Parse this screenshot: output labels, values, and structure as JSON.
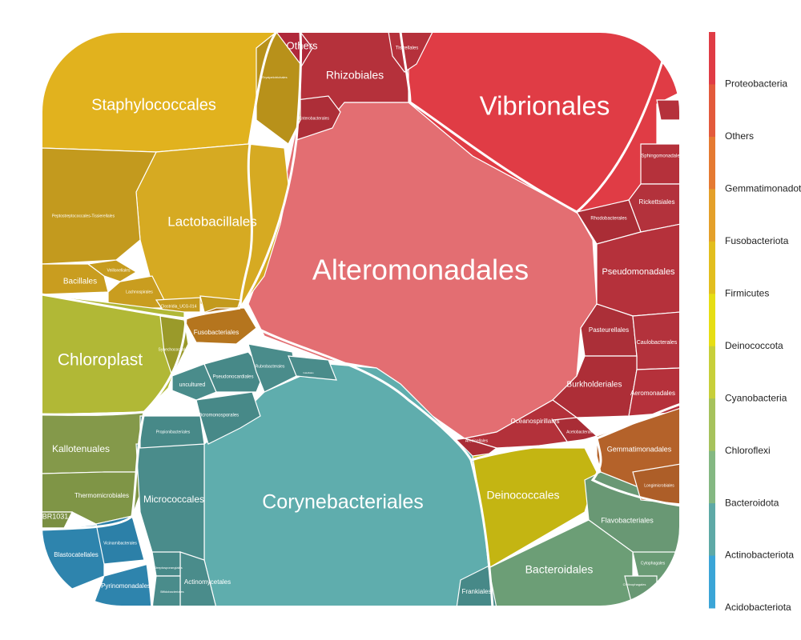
{
  "chart_data": {
    "type": "voronoi-treemap",
    "title": "",
    "legend": {
      "placement": "right",
      "phyla": [
        {
          "name": "Proteobacteria",
          "color": "#e03c45"
        },
        {
          "name": "Others",
          "color": "#e35a3c"
        },
        {
          "name": "Gemmatimonadota",
          "color": "#e57a32"
        },
        {
          "name": "Fusobacteriota",
          "color": "#e4a02a"
        },
        {
          "name": "Firmicutes",
          "color": "#e2be1e"
        },
        {
          "name": "Deinococcota",
          "color": "#e6de14"
        },
        {
          "name": "Cyanobacteria",
          "color": "#c7cf3a"
        },
        {
          "name": "Chloroflexi",
          "color": "#a6c25c"
        },
        {
          "name": "Bacteroidota",
          "color": "#84b882"
        },
        {
          "name": "Actinobacteriota",
          "color": "#5ea9a6"
        },
        {
          "name": "Acidobacteriota",
          "color": "#3ba5d7"
        }
      ]
    },
    "cells": [
      {
        "name": "Alteromonadales",
        "phylum": "Proteobacteria",
        "color": "#e36e72"
      },
      {
        "name": "Vibrionales",
        "phylum": "Proteobacteria",
        "color": "#e03c45"
      },
      {
        "name": "Rhizobiales",
        "phylum": "Proteobacteria",
        "color": "#b5313b"
      },
      {
        "name": "Tistrellales",
        "phylum": "Proteobacteria",
        "color": "#b5313b"
      },
      {
        "name": "Enterobacterales",
        "phylum": "Proteobacteria",
        "color": "#ad2e38"
      },
      {
        "name": "Sphingomonadales",
        "phylum": "Proteobacteria",
        "color": "#b5313b"
      },
      {
        "name": "Rickettsiales",
        "phylum": "Proteobacteria",
        "color": "#b3323c"
      },
      {
        "name": "Rhodobacterales",
        "phylum": "Proteobacteria",
        "color": "#aa2d36"
      },
      {
        "name": "Pseudomonadales",
        "phylum": "Proteobacteria",
        "color": "#b5313b"
      },
      {
        "name": "Pasteurellales",
        "phylum": "Proteobacteria",
        "color": "#ab2f38"
      },
      {
        "name": "Caulobacterales",
        "phylum": "Proteobacteria",
        "color": "#b3323c"
      },
      {
        "name": "Burkholderiales",
        "phylum": "Proteobacteria",
        "color": "#ad2e37"
      },
      {
        "name": "Aeromonadales",
        "phylum": "Proteobacteria",
        "color": "#b5313b"
      },
      {
        "name": "Oceanospirillales",
        "phylum": "Proteobacteria",
        "color": "#b3313a"
      },
      {
        "name": "Acetobacterales",
        "phylum": "Proteobacteria",
        "color": "#a92d36"
      },
      {
        "name": "Alcanivoracales",
        "phylum": "Proteobacteria",
        "color": "#b5313b"
      },
      {
        "name": "Arenicellales",
        "phylum": "Proteobacteria",
        "color": "#a92d36"
      },
      {
        "name": "Others",
        "phylum": "Others",
        "color": "#b0283a"
      },
      {
        "name": "Staphylococcales",
        "phylum": "Firmicutes",
        "color": "#e1b21e"
      },
      {
        "name": "Lactobacillales",
        "phylum": "Firmicutes",
        "color": "#d6aa22"
      },
      {
        "name": "Peptostreptococcales-Tissierellales",
        "phylum": "Firmicutes",
        "color": "#c39a1e"
      },
      {
        "name": "Erysipelotrichales",
        "phylum": "Firmicutes",
        "color": "#b8911a"
      },
      {
        "name": "Bacillales",
        "phylum": "Firmicutes",
        "color": "#c99d1f"
      },
      {
        "name": "Veillonellales",
        "phylum": "Firmicutes",
        "color": "#c79c1e"
      },
      {
        "name": "Lachnospirales",
        "phylum": "Firmicutes",
        "color": "#c99d1f"
      },
      {
        "name": "Clostridia_UCG-014",
        "phylum": "Firmicutes",
        "color": "#c59a1e"
      },
      {
        "name": "Thermoanaerobacterales",
        "phylum": "Firmicutes",
        "color": "#c39a1e"
      },
      {
        "name": "Fusobacteriales",
        "phylum": "Fusobacteriota",
        "color": "#b5751e"
      },
      {
        "name": "Chloroplast",
        "phylum": "Cyanobacteria",
        "color": "#b1b836"
      },
      {
        "name": "Synechococcales",
        "phylum": "Cyanobacteria",
        "color": "#9a9a2a"
      },
      {
        "name": "Kallotenuales",
        "phylum": "Chloroflexi",
        "color": "#84994a"
      },
      {
        "name": "Thermomicrobiales",
        "phylum": "Chloroflexi",
        "color": "#7f9546"
      },
      {
        "name": "SBR1031",
        "phylum": "Chloroflexi",
        "color": "#7a8f42"
      },
      {
        "name": "Corynebacteriales",
        "phylum": "Actinobacteriota",
        "color": "#5fadad"
      },
      {
        "name": "Micrococcales",
        "phylum": "Actinobacteriota",
        "color": "#4a8c8b"
      },
      {
        "name": "Propionibacteriales",
        "phylum": "Actinobacteriota",
        "color": "#478988"
      },
      {
        "name": "Micromonosporales",
        "phylum": "Actinobacteriota",
        "color": "#478988"
      },
      {
        "name": "uncultured",
        "phylum": "Actinobacteriota",
        "color": "#4a8c8b"
      },
      {
        "name": "Pseudonocardiales",
        "phylum": "Actinobacteriota",
        "color": "#478988"
      },
      {
        "name": "Rubrobacterales",
        "phylum": "Actinobacteriota",
        "color": "#4a8c8b"
      },
      {
        "name": "Frankiales",
        "phylum": "Actinobacteriota",
        "color": "#478988"
      },
      {
        "name": "Actinomycetales",
        "phylum": "Actinobacteriota",
        "color": "#4a8c8b"
      },
      {
        "name": "Streptosporangiales",
        "phylum": "Actinobacteriota",
        "color": "#478988"
      },
      {
        "name": "Bifidobacteriales",
        "phylum": "Actinobacteriota",
        "color": "#4a8c8b"
      },
      {
        "name": "Gaiellales",
        "phylum": "Actinobacteriota",
        "color": "#4a8c8b"
      },
      {
        "name": "Deinococcales",
        "phylum": "Deinococcota",
        "color": "#c4b512"
      },
      {
        "name": "Flavobacteriales",
        "phylum": "Bacteroidota",
        "color": "#699874"
      },
      {
        "name": "Bacteroidales",
        "phylum": "Bacteroidota",
        "color": "#6c9e76"
      },
      {
        "name": "Cytophagales",
        "phylum": "Bacteroidota",
        "color": "#6a9b75"
      },
      {
        "name": "Chitinophagales",
        "phylum": "Bacteroidota",
        "color": "#699874"
      },
      {
        "name": "Gemmatimonadales",
        "phylum": "Gemmatimonadota",
        "color": "#b4622a"
      },
      {
        "name": "Longimicrobiales",
        "phylum": "Gemmatimonadota",
        "color": "#ad5e28"
      },
      {
        "name": "Blastocatellales",
        "phylum": "Acidobacteriota",
        "color": "#2e84ad"
      },
      {
        "name": "Pyrinomonadales",
        "phylum": "Acidobacteriota",
        "color": "#2e84ad"
      },
      {
        "name": "Vicinamibacterales",
        "phylum": "Acidobacteriota",
        "color": "#2c80a8"
      }
    ]
  }
}
